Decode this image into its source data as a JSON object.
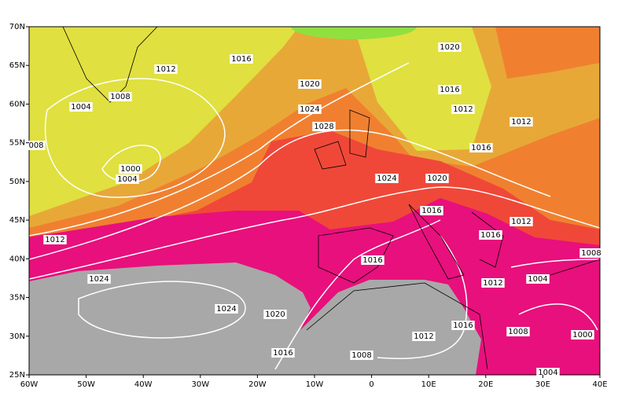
{
  "axes": {
    "lat_labels": [
      "70N",
      "65N",
      "60N",
      "55N",
      "50N",
      "45N",
      "40N",
      "35N",
      "30N",
      "25N"
    ],
    "lon_labels": [
      "60W",
      "50W",
      "40W",
      "30W",
      "20W",
      "10W",
      "0",
      "10E",
      "20E",
      "30E",
      "40E"
    ]
  },
  "isobar_labels": [
    "1016",
    "1020",
    "1012",
    "1008",
    "1020",
    "1016",
    "1004",
    "1024",
    "1012",
    "1012",
    "1028",
    "008",
    "1016",
    "1000",
    "1004",
    "1024",
    "1020",
    "1016",
    "1012",
    "1016",
    "1012",
    "1016",
    "1008",
    "1024",
    "1012",
    "1004",
    "1024",
    "1020",
    "1016",
    "1008",
    "1000",
    "1012",
    "1016",
    "1008",
    "1004"
  ]
}
